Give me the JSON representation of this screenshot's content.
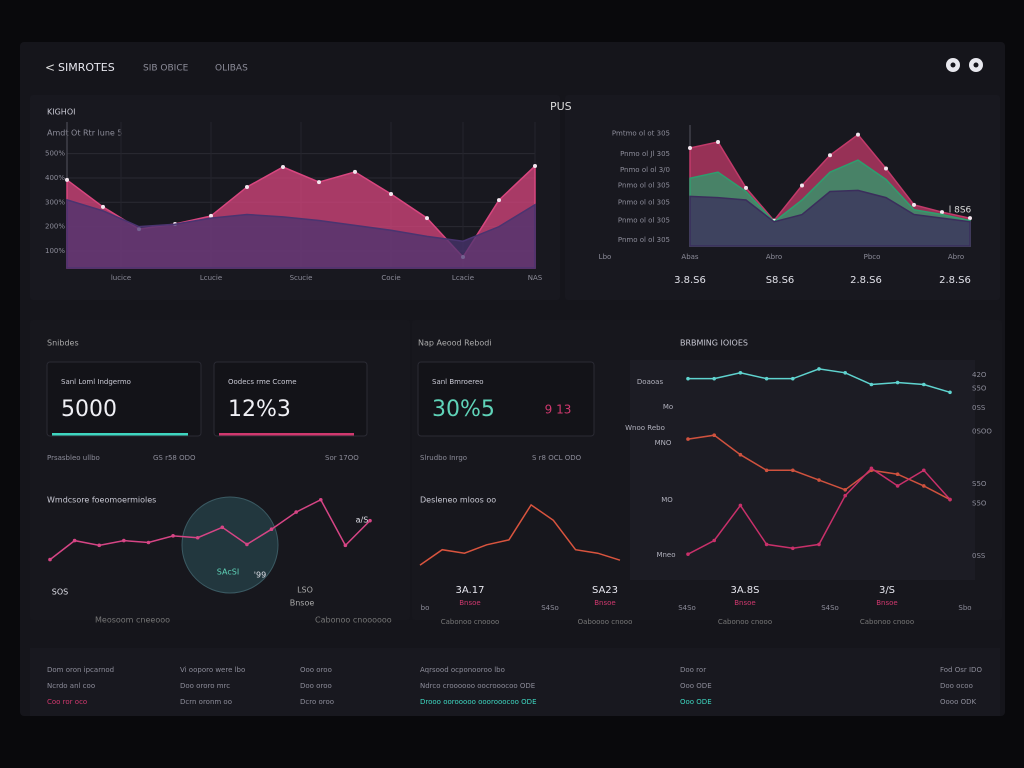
{
  "header": {
    "back": "<",
    "title": "SIMROTES",
    "tabs": [
      "SIB OBICE",
      "OLIBAS"
    ]
  },
  "chart_data": [
    {
      "type": "area",
      "title": "KIGHOI",
      "subtitle": "Amdt Ot Rtr lune 5",
      "markers": true,
      "grid": true,
      "x": [
        0,
        1,
        2,
        3,
        4,
        5,
        6,
        7,
        8,
        9,
        10,
        11,
        12,
        13
      ],
      "xlim": [
        0,
        13
      ],
      "xticks": [
        {
          "value": 1.5,
          "label": "lucice"
        },
        {
          "value": 4,
          "label": "Lcucie"
        },
        {
          "value": 6.5,
          "label": "Scucie"
        },
        {
          "value": 9,
          "label": "Cocie"
        },
        {
          "value": 11,
          "label": "Lcacie"
        },
        {
          "value": 13,
          "label": "NAS"
        }
      ],
      "ylim": [
        30,
        630
      ],
      "yticks": [
        {
          "value": 500,
          "label": "500%"
        },
        {
          "value": 400,
          "label": "400%"
        },
        {
          "value": 300,
          "label": "300%"
        },
        {
          "value": 200,
          "label": "200%"
        },
        {
          "value": 100,
          "label": "100%"
        }
      ],
      "series": [
        {
          "color": "#d8467f",
          "values": [
            392,
            281,
            190,
            211,
            244,
            363,
            445,
            383,
            425,
            334,
            235,
            75,
            309,
            449
          ]
        },
        {
          "color": "#4a3470",
          "values": [
            310,
            265,
            200,
            210,
            235,
            250,
            240,
            225,
            205,
            185,
            160,
            140,
            200,
            290
          ]
        }
      ]
    },
    {
      "type": "area",
      "title": "PUS",
      "markers": true,
      "grid": false,
      "x": [
        0,
        1,
        2,
        3,
        4,
        5,
        6,
        7,
        8,
        9,
        10
      ],
      "xlim": [
        0,
        10
      ],
      "xticks": [
        {
          "value": 0,
          "label": "Abas"
        },
        {
          "value": 3,
          "label": "Abro"
        },
        {
          "value": 6.5,
          "label": "Pbco"
        },
        {
          "value": 9.5,
          "label": "Abro"
        }
      ],
      "ylim": [
        0,
        100
      ],
      "yticks": [
        {
          "value": 93,
          "label": "Pmtmo ol ot 305"
        },
        {
          "value": 76,
          "label": "Pnmo ol Jl 305"
        },
        {
          "value": 63,
          "label": "Pnmo ol ol 3/0"
        },
        {
          "value": 50,
          "label": "Pnmo ol ol 305"
        },
        {
          "value": 36,
          "label": "Pnmo ol ol 305"
        },
        {
          "value": 21,
          "label": "Pnmo ol ol 305"
        },
        {
          "value": 5,
          "label": "Pnmo ol ol 305"
        }
      ],
      "annotation": "l 8S6",
      "corner_label": "Lbo",
      "stats": [
        "3.8.S6",
        "S8.S6",
        "2.8.S6",
        "2.8.S6"
      ],
      "series": [
        {
          "color": "#c23a6a",
          "values": [
            81,
            86,
            48,
            21,
            50,
            75,
            92,
            64,
            34,
            28,
            23
          ]
        },
        {
          "color": "#2e9e6e",
          "values": [
            56,
            61,
            45,
            20,
            38,
            61,
            71,
            55,
            30,
            26,
            21
          ]
        },
        {
          "color": "#3b2d5c",
          "values": [
            41,
            40,
            38,
            20,
            26,
            45,
            46,
            40,
            26,
            23,
            20
          ]
        }
      ]
    },
    {
      "type": "line",
      "title": "BRBMING IOIOES",
      "markers": true,
      "grid": false,
      "x": [
        0,
        1,
        2,
        3,
        4,
        5,
        6,
        7,
        8,
        9,
        10
      ],
      "xlim": [
        0,
        10
      ],
      "ylim": [
        0,
        100
      ],
      "yticks": [
        {
          "value": 95,
          "label": "42O"
        },
        {
          "value": 88,
          "label": "S5O"
        },
        {
          "value": 78,
          "label": "0SS"
        },
        {
          "value": 66,
          "label": "0SOO"
        },
        {
          "value": 39,
          "label": "S5O"
        },
        {
          "value": 29,
          "label": "S5O"
        },
        {
          "value": 2,
          "label": "0SS"
        }
      ],
      "labels": [
        "Doaoas",
        "Mo",
        "Wnoo Rebo",
        "MNO",
        "MO",
        "Mneo"
      ],
      "series": [
        {
          "color": "#5fd3cf",
          "values": [
            93,
            93,
            96,
            93,
            93,
            98,
            96,
            90,
            91,
            90,
            86
          ]
        },
        {
          "color": "#d0523e",
          "values": [
            62,
            64,
            54,
            46,
            46,
            41,
            36,
            46,
            44,
            38,
            31
          ]
        },
        {
          "color": "#c8306a",
          "values": [
            3,
            10,
            28,
            8,
            6,
            8,
            33,
            47,
            38,
            46,
            31
          ]
        }
      ]
    },
    {
      "type": "line",
      "title": "Wmdcsore foeomoermioles",
      "markers": true,
      "grid": false,
      "x": [
        0,
        1,
        2,
        3,
        4,
        5,
        6,
        7,
        8,
        9,
        10,
        11,
        12,
        13
      ],
      "xlim": [
        0,
        13
      ],
      "ylim": [
        0,
        100
      ],
      "annotations": [
        "SAcSI",
        "'99",
        "SOS",
        "LSO",
        "Bnsoe",
        "Meosoom cneeooo",
        "Cabonoo cnoooooo",
        "a/S"
      ],
      "series": [
        {
          "color": "#d64585",
          "values": [
            32,
            52,
            47,
            52,
            50,
            57,
            55,
            66,
            48,
            64,
            82,
            95,
            47,
            73
          ]
        }
      ]
    },
    {
      "type": "line",
      "title": "Desleneo mloos oo",
      "markers": false,
      "grid": false,
      "x": [
        0,
        1,
        2,
        3,
        4,
        5,
        6,
        7,
        8,
        9
      ],
      "xlim": [
        0,
        9
      ],
      "ylim": [
        0,
        100
      ],
      "series": [
        {
          "color": "#d9543e",
          "values": [
            7,
            29,
            24,
            36,
            43,
            93,
            71,
            29,
            24,
            14
          ]
        }
      ]
    }
  ],
  "kpi": {
    "section_titles": [
      "Snibdes",
      "Nap Aeood Rebodi"
    ],
    "cards": [
      {
        "title": "Sanl Loml Indgermo",
        "value": "5000",
        "bar": "#3ed6c0"
      },
      {
        "title": "Oodecs rme Ccome",
        "value": "12%3",
        "bar": "#d0386e"
      },
      {
        "title": "Sanl Bmroereo",
        "value": "30%5",
        "value_color": "#5fd3b8",
        "extra": "9 13"
      }
    ],
    "notes": [
      "Prsasbleo ullbo",
      "GS r58 ODO",
      "Sor 17OO",
      "Slrudbo Inrgo",
      "S r8 OCL ODO"
    ]
  },
  "stats_row": [
    {
      "value": "3A.17",
      "label": "Bnsoe",
      "note": "Cabonoo cnoooo"
    },
    {
      "value": "SA23",
      "label": "Bnsoe",
      "note": "Oaboooo cnooo"
    },
    {
      "value": "3A.8S",
      "label": "Bnsoe",
      "note": "Cabonoo cnooo"
    },
    {
      "value": "3/S",
      "label": "Bnsoe",
      "note": "Cabonoo cnooo"
    }
  ],
  "stats_small": [
    "bo",
    "S4So",
    "S4So",
    "S4So",
    "Sbo"
  ],
  "footer": {
    "columns": [
      {
        "rows": [
          {
            "text": "Dom oron ipcarnod"
          },
          {
            "text": "Ncrdo anl coo"
          },
          {
            "text": "Coo ror oco",
            "accent": "#d0386e"
          }
        ]
      },
      {
        "rows": [
          {
            "text": "Vi ooporo were lbo"
          },
          {
            "text": "Doo ororo mrc"
          },
          {
            "text": "Dcrn oronm oo"
          }
        ]
      },
      {
        "rows": [
          {
            "text": "Ooo oroo"
          },
          {
            "text": "Doo oroo"
          },
          {
            "text": "Dcro oroo"
          }
        ]
      },
      {
        "rows": [
          {
            "text": "Aqrsood ocponooroo lbo"
          },
          {
            "text": "Ndrco croooooo oocrooocoo ODE"
          },
          {
            "text": "Drooo oorooooo ooorooocoo ODE",
            "accent": "#3ed6c0"
          }
        ]
      },
      {
        "rows": [
          {
            "text": "Doo ror"
          },
          {
            "text": "Ooo ODE"
          },
          {
            "text": "Ooo ODE",
            "accent": "#3ed6c0"
          }
        ]
      },
      {
        "rows": [
          {
            "text": "Fod Osr IDO"
          },
          {
            "text": "Doo ocoo"
          },
          {
            "text": "Oooo ODK"
          }
        ]
      }
    ]
  }
}
